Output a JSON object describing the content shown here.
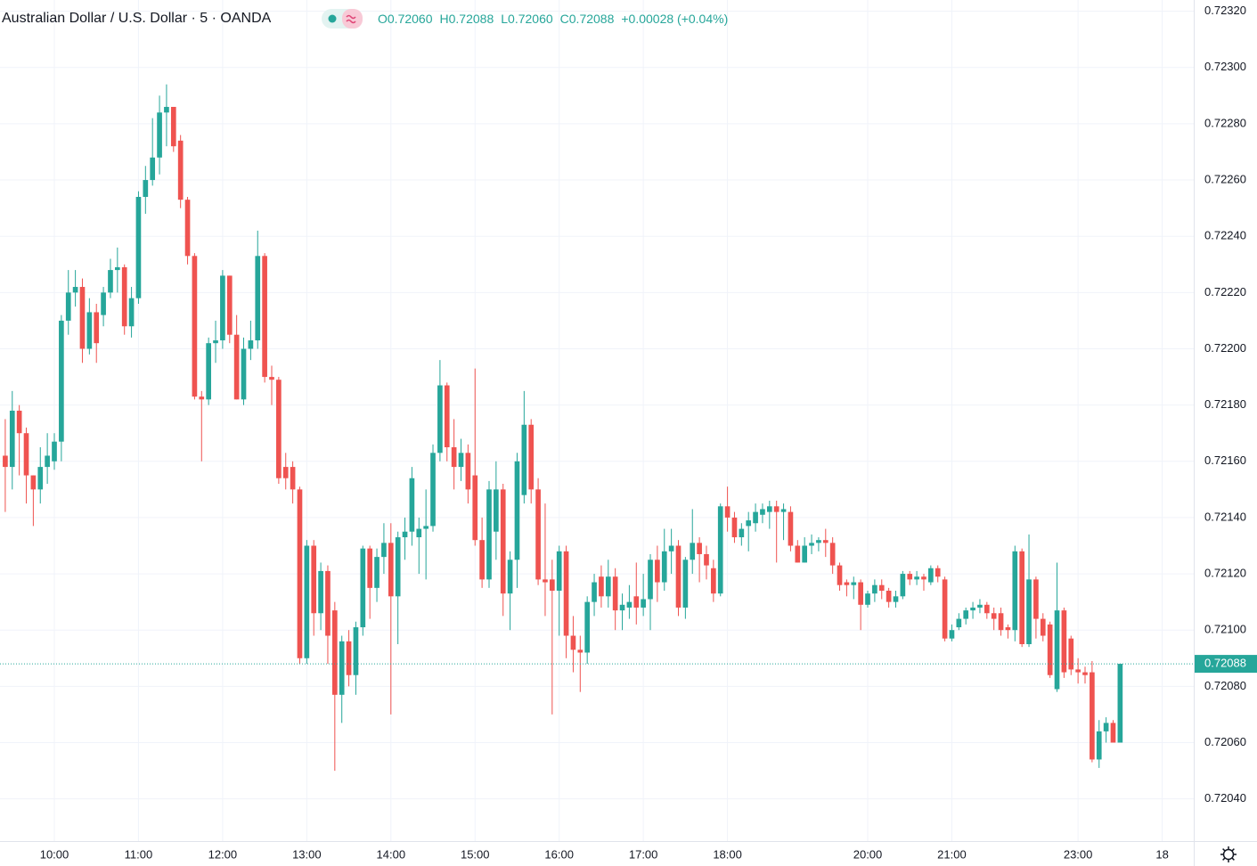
{
  "chart_data": {
    "type": "candlestick",
    "title": "Australian Dollar / U.S. Dollar · 5 · OANDA",
    "ohlc_legend": [
      {
        "label": "O",
        "value": "0.72060"
      },
      {
        "label": "H",
        "value": "0.72088"
      },
      {
        "label": "L",
        "value": "0.72060"
      },
      {
        "label": "C",
        "value": "0.72088"
      }
    ],
    "change": "+0.00028 (+0.04%)",
    "up_color": "#26a69a",
    "down_color": "#ef5350",
    "grid": true,
    "xlim": [
      -0.75,
      169.5
    ],
    "xticks": [
      {
        "value": 7,
        "label": "10:00"
      },
      {
        "value": 19,
        "label": "11:00"
      },
      {
        "value": 31,
        "label": "12:00"
      },
      {
        "value": 43,
        "label": "13:00"
      },
      {
        "value": 55,
        "label": "14:00"
      },
      {
        "value": 67,
        "label": "15:00"
      },
      {
        "value": 79,
        "label": "16:00"
      },
      {
        "value": 91,
        "label": "17:00"
      },
      {
        "value": 103,
        "label": "18:00"
      },
      {
        "value": 123,
        "label": "20:00"
      },
      {
        "value": 135,
        "label": "21:00"
      },
      {
        "value": 153,
        "label": "23:00"
      },
      {
        "value": 165,
        "label": "18"
      }
    ],
    "ylim": [
      0.72025,
      0.72324
    ],
    "yticks": [
      {
        "value": 0.7204,
        "label": "0.72040"
      },
      {
        "value": 0.7206,
        "label": "0.72060"
      },
      {
        "value": 0.7208,
        "label": "0.72080"
      },
      {
        "value": 0.721,
        "label": "0.72100"
      },
      {
        "value": 0.7212,
        "label": "0.72120"
      },
      {
        "value": 0.7214,
        "label": "0.72140"
      },
      {
        "value": 0.7216,
        "label": "0.72160"
      },
      {
        "value": 0.7218,
        "label": "0.72180"
      },
      {
        "value": 0.722,
        "label": "0.72200"
      },
      {
        "value": 0.7222,
        "label": "0.72220"
      },
      {
        "value": 0.7224,
        "label": "0.72240"
      },
      {
        "value": 0.7226,
        "label": "0.72260"
      },
      {
        "value": 0.7228,
        "label": "0.72280"
      },
      {
        "value": 0.723,
        "label": "0.72300"
      },
      {
        "value": 0.7232,
        "label": "0.72320"
      }
    ],
    "last_price": {
      "value": 0.72088,
      "label": "0.72088"
    },
    "open": [
      0.72162,
      0.72158,
      0.72178,
      0.7217,
      0.72155,
      0.7215,
      0.72158,
      0.7216,
      0.72167,
      0.7221,
      0.7222,
      0.72222,
      0.722,
      0.72213,
      0.72212,
      0.7222,
      0.72228,
      0.72229,
      0.72208,
      0.72218,
      0.72254,
      0.7226,
      0.72268,
      0.72284,
      0.72286,
      0.72274,
      0.72253,
      0.72233,
      0.72183,
      0.72182,
      0.72202,
      0.72203,
      0.72226,
      0.72205,
      0.72182,
      0.722,
      0.72203,
      0.72233,
      0.7219,
      0.72189,
      0.72158,
      0.72158,
      0.7215,
      0.7209,
      0.7213,
      0.72106,
      0.72121,
      0.72107,
      0.72077,
      0.72096,
      0.72084,
      0.72101,
      0.72129,
      0.72115,
      0.72126,
      0.72131,
      0.72112,
      0.72133,
      0.72135,
      0.72133,
      0.72136,
      0.72137,
      0.72163,
      0.72187,
      0.72165,
      0.72158,
      0.72163,
      0.72155,
      0.72132,
      0.72118,
      0.72135,
      0.7215,
      0.72113,
      0.72125,
      0.72148,
      0.72173,
      0.7215,
      0.72118,
      0.72118,
      0.72114,
      0.72128,
      0.72098,
      0.72093,
      0.72092,
      0.7211,
      0.72119,
      0.72112,
      0.72119,
      0.72107,
      0.72108,
      0.72112,
      0.72108,
      0.72111,
      0.72125,
      0.72117,
      0.72128,
      0.7213,
      0.72108,
      0.72125,
      0.72131,
      0.72127,
      0.72122,
      0.72113,
      0.72144,
      0.7214,
      0.72133,
      0.72137,
      0.72138,
      0.72141,
      0.72142,
      0.72144,
      0.72142,
      0.72142,
      0.7213,
      0.72124,
      0.7213,
      0.72131,
      0.72132,
      0.72131,
      0.72123,
      0.72117,
      0.72116,
      0.72117,
      0.72109,
      0.72113,
      0.72116,
      0.72114,
      0.7211,
      0.72112,
      0.7212,
      0.72118,
      0.72119,
      0.72117,
      0.72122,
      0.72118,
      0.72097,
      0.72101,
      0.72104,
      0.72107,
      0.72108,
      0.72109,
      0.72106,
      0.72106,
      0.72101,
      0.721,
      0.72128,
      0.72095,
      0.72118,
      0.72104,
      0.72102,
      0.72079,
      0.72107,
      0.72097,
      0.72086,
      0.72085,
      0.72085,
      0.72054,
      0.72064,
      0.72067,
      0.7206
    ],
    "high": [
      0.72175,
      0.72185,
      0.7218,
      0.72172,
      0.72155,
      0.72165,
      0.7217,
      0.7217,
      0.72212,
      0.72228,
      0.72228,
      0.72225,
      0.72218,
      0.72216,
      0.72222,
      0.72232,
      0.72236,
      0.7223,
      0.72222,
      0.72256,
      0.72265,
      0.72282,
      0.7229,
      0.72294,
      0.72286,
      0.72276,
      0.72254,
      0.72234,
      0.72185,
      0.72204,
      0.7221,
      0.72228,
      0.72226,
      0.72212,
      0.72204,
      0.7221,
      0.72242,
      0.72234,
      0.72194,
      0.7219,
      0.72163,
      0.7216,
      0.72151,
      0.72132,
      0.72132,
      0.72124,
      0.72123,
      0.7211,
      0.72098,
      0.721,
      0.72103,
      0.7213,
      0.7213,
      0.72129,
      0.72138,
      0.72138,
      0.72135,
      0.7214,
      0.72158,
      0.7214,
      0.7215,
      0.72166,
      0.72196,
      0.72188,
      0.72175,
      0.72168,
      0.72166,
      0.72193,
      0.7214,
      0.72153,
      0.7216,
      0.72152,
      0.72128,
      0.72163,
      0.72185,
      0.72175,
      0.72154,
      0.72145,
      0.72125,
      0.7213,
      0.7213,
      0.72105,
      0.72098,
      0.72112,
      0.7212,
      0.72123,
      0.72125,
      0.72122,
      0.72113,
      0.72116,
      0.72124,
      0.7212,
      0.72127,
      0.7213,
      0.72136,
      0.72136,
      0.72132,
      0.72126,
      0.72143,
      0.72133,
      0.7213,
      0.72125,
      0.72145,
      0.72151,
      0.72142,
      0.72138,
      0.72142,
      0.72145,
      0.72145,
      0.72146,
      0.72146,
      0.72145,
      0.72144,
      0.72132,
      0.72133,
      0.72134,
      0.72133,
      0.72136,
      0.72133,
      0.72124,
      0.72118,
      0.72119,
      0.72118,
      0.72114,
      0.72118,
      0.72118,
      0.72115,
      0.72114,
      0.72121,
      0.72121,
      0.72121,
      0.7212,
      0.72123,
      0.72123,
      0.72119,
      0.72102,
      0.72106,
      0.72108,
      0.7211,
      0.72111,
      0.7211,
      0.72108,
      0.72108,
      0.72102,
      0.7213,
      0.72129,
      0.72134,
      0.72119,
      0.72106,
      0.72103,
      0.72124,
      0.72108,
      0.72098,
      0.7209,
      0.72087,
      0.72089,
      0.72068,
      0.72069,
      0.72068,
      0.72088
    ],
    "low": [
      0.72142,
      0.7215,
      0.72155,
      0.72145,
      0.72137,
      0.72145,
      0.72152,
      0.72157,
      0.7216,
      0.72205,
      0.72215,
      0.72195,
      0.72198,
      0.72195,
      0.72208,
      0.72218,
      0.7222,
      0.72205,
      0.72204,
      0.72216,
      0.72248,
      0.72258,
      0.72262,
      0.72272,
      0.7227,
      0.7225,
      0.7223,
      0.72182,
      0.7216,
      0.7218,
      0.72195,
      0.722,
      0.72202,
      0.72182,
      0.7218,
      0.72196,
      0.722,
      0.72188,
      0.7218,
      0.72152,
      0.7215,
      0.72145,
      0.72088,
      0.72088,
      0.72098,
      0.721,
      0.72088,
      0.7205,
      0.72067,
      0.7208,
      0.72077,
      0.72098,
      0.72104,
      0.7211,
      0.7212,
      0.7207,
      0.72095,
      0.72125,
      0.7213,
      0.7212,
      0.72118,
      0.72135,
      0.7216,
      0.7216,
      0.7215,
      0.72153,
      0.72145,
      0.7213,
      0.72115,
      0.72115,
      0.72125,
      0.72105,
      0.721,
      0.72115,
      0.72145,
      0.72145,
      0.72116,
      0.72105,
      0.7207,
      0.72098,
      0.7209,
      0.72085,
      0.72078,
      0.72088,
      0.72105,
      0.72108,
      0.72108,
      0.721,
      0.721,
      0.72104,
      0.72102,
      0.72105,
      0.721,
      0.7211,
      0.72114,
      0.7212,
      0.72105,
      0.72104,
      0.7212,
      0.72117,
      0.72118,
      0.7211,
      0.72112,
      0.72135,
      0.72131,
      0.7213,
      0.72128,
      0.72135,
      0.72138,
      0.72136,
      0.72124,
      0.72132,
      0.72128,
      0.72124,
      0.72124,
      0.72127,
      0.72128,
      0.72126,
      0.7212,
      0.72114,
      0.72112,
      0.72111,
      0.721,
      0.72108,
      0.7211,
      0.72111,
      0.72108,
      0.72108,
      0.72111,
      0.72116,
      0.72116,
      0.72114,
      0.72116,
      0.72117,
      0.72096,
      0.72096,
      0.721,
      0.72102,
      0.72104,
      0.72106,
      0.72104,
      0.721,
      0.72098,
      0.72097,
      0.72096,
      0.72094,
      0.72094,
      0.72097,
      0.72096,
      0.72083,
      0.72078,
      0.72083,
      0.72084,
      0.72081,
      0.72081,
      0.72053,
      0.72051,
      0.7206,
      0.7206,
      0.7206
    ],
    "close": [
      0.72158,
      0.72178,
      0.7217,
      0.72155,
      0.7215,
      0.72158,
      0.72162,
      0.72167,
      0.7221,
      0.7222,
      0.72222,
      0.722,
      0.72213,
      0.72202,
      0.7222,
      0.72228,
      0.72229,
      0.72208,
      0.72218,
      0.72254,
      0.7226,
      0.72268,
      0.72284,
      0.72286,
      0.72272,
      0.72253,
      0.72233,
      0.72183,
      0.72182,
      0.72202,
      0.72203,
      0.72226,
      0.72205,
      0.72182,
      0.722,
      0.72203,
      0.72233,
      0.7219,
      0.72189,
      0.72154,
      0.72154,
      0.7215,
      0.7209,
      0.7213,
      0.72106,
      0.72121,
      0.72098,
      0.72077,
      0.72096,
      0.72084,
      0.72101,
      0.72129,
      0.72115,
      0.72126,
      0.72131,
      0.72112,
      0.72133,
      0.72135,
      0.72154,
      0.72136,
      0.72137,
      0.72163,
      0.72187,
      0.72165,
      0.72158,
      0.72163,
      0.7215,
      0.72132,
      0.72118,
      0.7215,
      0.7215,
      0.72113,
      0.72125,
      0.7216,
      0.72173,
      0.7215,
      0.72118,
      0.72117,
      0.72114,
      0.72128,
      0.72098,
      0.72093,
      0.72092,
      0.7211,
      0.72117,
      0.72112,
      0.72119,
      0.72107,
      0.72109,
      0.7211,
      0.72108,
      0.72111,
      0.72125,
      0.72117,
      0.72128,
      0.7213,
      0.72108,
      0.72125,
      0.72131,
      0.72127,
      0.72123,
      0.72113,
      0.72144,
      0.7214,
      0.72133,
      0.72136,
      0.72139,
      0.72142,
      0.72143,
      0.72144,
      0.72142,
      0.72143,
      0.7213,
      0.72124,
      0.7213,
      0.72131,
      0.72132,
      0.72131,
      0.72123,
      0.72116,
      0.72116,
      0.72117,
      0.72109,
      0.72113,
      0.72116,
      0.72114,
      0.7211,
      0.72112,
      0.7212,
      0.72118,
      0.72119,
      0.72118,
      0.72122,
      0.72119,
      0.72097,
      0.721,
      0.72104,
      0.72107,
      0.72108,
      0.72109,
      0.72106,
      0.72104,
      0.721,
      0.721,
      0.72128,
      0.72095,
      0.72118,
      0.72104,
      0.72098,
      0.72084,
      0.72107,
      0.72085,
      0.72086,
      0.72085,
      0.72084,
      0.72054,
      0.72064,
      0.72067,
      0.7206,
      0.72088
    ]
  }
}
